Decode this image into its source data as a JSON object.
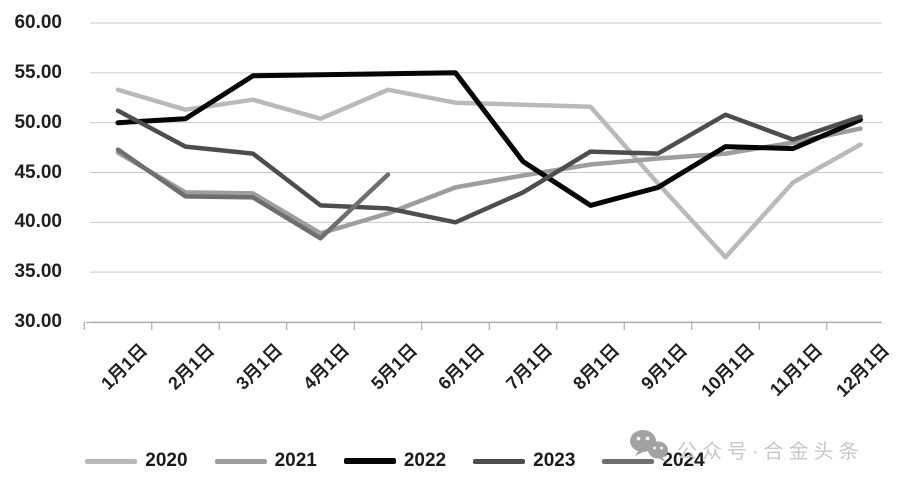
{
  "watermark": {
    "icon": "wechat-icon",
    "text": "公众号·合金头条"
  },
  "chart_data": {
    "type": "line",
    "categories": [
      "1月1日",
      "2月1日",
      "3月1日",
      "4月1日",
      "5月1日",
      "6月1日",
      "7月1日",
      "8月1日",
      "9月1日",
      "10月1日",
      "11月1日",
      "12月1日"
    ],
    "series": [
      {
        "name": "2020",
        "color": "#b9b9b9",
        "values": [
          53.3,
          51.3,
          52.3,
          50.4,
          53.3,
          52.0,
          51.8,
          51.6,
          43.9,
          36.5,
          44.0,
          47.8
        ]
      },
      {
        "name": "2021",
        "color": "#9d9d9d",
        "values": [
          47.0,
          43.0,
          42.9,
          38.9,
          40.9,
          43.5,
          44.7,
          45.8,
          46.4,
          46.9,
          48.0,
          49.4
        ]
      },
      {
        "name": "2022",
        "color": "#050505",
        "values": [
          50.0,
          50.4,
          54.7,
          54.8,
          54.9,
          55.0,
          46.1,
          41.7,
          43.5,
          47.6,
          47.4,
          50.3
        ]
      },
      {
        "name": "2023",
        "color": "#4d4d4d",
        "values": [
          51.2,
          47.6,
          46.9,
          41.7,
          41.4,
          40.0,
          43.0,
          47.1,
          46.9,
          50.8,
          48.3,
          50.6
        ]
      },
      {
        "name": "2024",
        "color": "#6e6e6e",
        "values": [
          47.3,
          42.6,
          42.5,
          38.4,
          44.8
        ]
      }
    ],
    "title": "",
    "xlabel": "",
    "ylabel": "",
    "ylim": [
      30,
      60
    ],
    "ytick_step": 5,
    "ytick_labels": [
      "30.00",
      "35.00",
      "40.00",
      "45.00",
      "50.00",
      "55.00",
      "60.00"
    ],
    "grid": true,
    "legend_position": "bottom"
  }
}
